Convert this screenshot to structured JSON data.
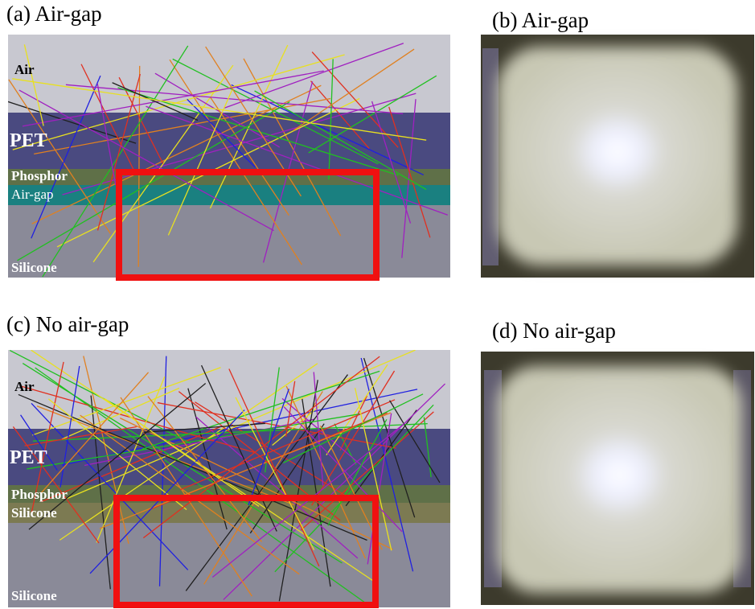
{
  "panels": [
    {
      "caption": "(a) Air-gap",
      "layers": [
        "Air",
        "PET",
        "Phosphor",
        "Air-gap",
        "Silicone"
      ]
    },
    {
      "caption": "(b) Air-gap"
    },
    {
      "caption": "(c) No air-gap",
      "layers": [
        "Air",
        "PET",
        "Phosphor",
        "Silicone",
        "Silicone"
      ]
    },
    {
      "caption": "(d) No air-gap"
    }
  ]
}
